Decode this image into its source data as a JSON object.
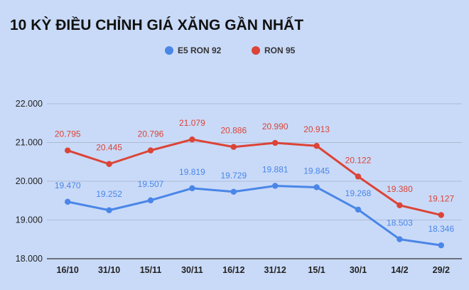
{
  "chart_data": {
    "type": "line",
    "title": "10 KỲ ĐIỀU CHỈNH GIÁ XĂNG GẦN NHẤT",
    "categories": [
      "16/10",
      "31/10",
      "15/11",
      "30/11",
      "16/12",
      "31/12",
      "15/1",
      "30/1",
      "14/2",
      "29/2"
    ],
    "ylim": [
      18000,
      22000
    ],
    "yticks": [
      18000,
      19000,
      20000,
      21000,
      22000
    ],
    "ytick_labels": [
      "18.000",
      "19.000",
      "20.000",
      "21.000",
      "22.000"
    ],
    "grid": true,
    "legend_position": "top-center",
    "series": [
      {
        "name": "E5 RON 92",
        "color": "#4a86e8",
        "values": [
          19470,
          19252,
          19507,
          19819,
          19729,
          19881,
          19845,
          19268,
          18503,
          18346
        ],
        "labels": [
          "19.470",
          "19.252",
          "19.507",
          "19.819",
          "19.729",
          "19.881",
          "19.845",
          "19.268",
          "18.503",
          "18.346"
        ]
      },
      {
        "name": "RON 95",
        "color": "#db4437",
        "values": [
          20795,
          20445,
          20796,
          21079,
          20886,
          20990,
          20913,
          20122,
          19380,
          19127
        ],
        "labels": [
          "20.795",
          "20.445",
          "20.796",
          "21.079",
          "20.886",
          "20.990",
          "20.913",
          "20.122",
          "19.380",
          "19.127"
        ]
      }
    ]
  }
}
